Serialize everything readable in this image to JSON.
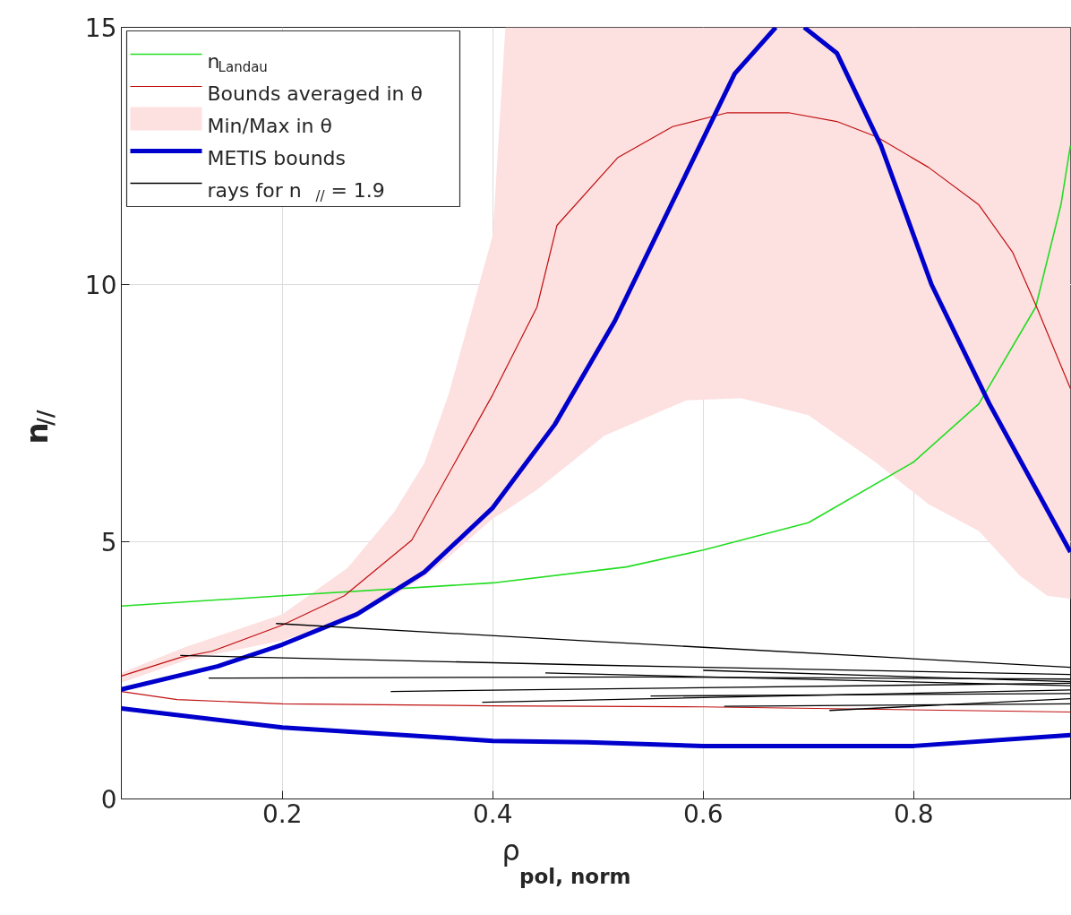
{
  "chart_data": {
    "type": "line",
    "xlabel": "ρ$_{pol, norm}$",
    "ylabel": "n$_{//}$",
    "xlim": [
      0.047,
      0.95
    ],
    "ylim": [
      0,
      15
    ],
    "xticks": [
      0.2,
      0.4,
      0.6,
      0.8
    ],
    "yticks": [
      0,
      5,
      10,
      15
    ],
    "grid": true,
    "legend": "top left",
    "series": [
      {
        "name": "n$_{Landau}$",
        "color": "#22dd22",
        "x": [
          0.047,
          0.2,
          0.4,
          0.527,
          0.6,
          0.7,
          0.8,
          0.862,
          0.916,
          0.94,
          0.949
        ],
        "values": [
          3.75,
          3.95,
          4.2,
          4.51,
          4.84,
          5.37,
          6.55,
          7.68,
          9.56,
          11.55,
          12.7
        ]
      },
      {
        "name": "Bounds averaged in θ",
        "color": "#c01010",
        "x": [
          0.047,
          0.103,
          0.133,
          0.2,
          0.259,
          0.323,
          0.4,
          0.442,
          0.461,
          0.519,
          0.571,
          0.623,
          0.681,
          0.727,
          0.765,
          0.814,
          0.862,
          0.894,
          0.917,
          0.949
        ],
        "values": [
          2.39,
          2.75,
          2.87,
          3.38,
          3.95,
          5.03,
          7.86,
          9.56,
          11.15,
          12.47,
          13.07,
          13.34,
          13.34,
          13.17,
          12.87,
          12.28,
          11.55,
          10.63,
          9.56,
          7.98
        ]
      },
      {
        "color": "#c01010",
        "x": [
          0.047,
          0.1,
          0.2,
          0.4,
          0.6,
          0.949
        ],
        "values": [
          2.09,
          1.93,
          1.85,
          1.81,
          1.79,
          1.69
        ]
      },
      {
        "name": "Min/Max in θ",
        "type": "area",
        "color": "#fde0e0",
        "x": [
          0.047,
          0.109,
          0.2,
          0.262,
          0.306,
          0.335,
          0.358,
          0.4,
          0.412,
          0.442,
          0.506,
          0.584,
          0.636,
          0.7,
          0.765,
          0.814,
          0.862,
          0.901,
          0.927,
          0.949
        ],
        "values": [
          null,
          null,
          null,
          null,
          null,
          null,
          null,
          null,
          null,
          null,
          null,
          null,
          null,
          null,
          null,
          null,
          null,
          null,
          null,
          null
        ],
        "lower": [
          2.26,
          2.7,
          3.08,
          3.5,
          3.95,
          4.32,
          4.7,
          5.45,
          5.6,
          6.01,
          7.06,
          7.75,
          7.79,
          7.46,
          6.53,
          5.73,
          5.21,
          4.34,
          3.95,
          3.89
        ],
        "upper": [
          2.45,
          2.96,
          3.59,
          4.49,
          5.57,
          6.53,
          7.86,
          10.96,
          15,
          15,
          15,
          15,
          15,
          15,
          15,
          15,
          15,
          15,
          15,
          15
        ]
      },
      {
        "name": "METIS bounds",
        "color": "#0000cc",
        "x": [
          0.047,
          0.139,
          0.2,
          0.271,
          0.335,
          0.4,
          0.459,
          0.516,
          0.63,
          0.669,
          0.682,
          0.696,
          0.727,
          0.769,
          0.817,
          0.872,
          0.949
        ],
        "values": [
          2.13,
          2.58,
          3.0,
          3.59,
          4.41,
          5.66,
          7.28,
          9.29,
          14.1,
          15.0,
          null,
          15.0,
          14.5,
          12.7,
          10.0,
          7.68,
          4.8
        ]
      },
      {
        "color": "#0000cc",
        "x": [
          0.047,
          0.2,
          0.4,
          0.49,
          0.6,
          0.8,
          0.949
        ],
        "values": [
          1.76,
          1.39,
          1.13,
          1.1,
          1.03,
          1.03,
          1.24
        ]
      },
      {
        "name": "rays for n$_{//}$ = 1.9",
        "color": "#000000",
        "x": [
          0.194,
          0.5,
          0.949
        ],
        "values": [
          3.41,
          3.06,
          2.56
        ]
      },
      {
        "color": "#000000",
        "x": [
          0.103,
          0.5,
          0.949
        ],
        "values": [
          2.79,
          2.6,
          2.42
        ]
      },
      {
        "color": "#000000",
        "x": [
          0.13,
          0.55,
          0.949
        ],
        "values": [
          2.35,
          2.37,
          2.33
        ]
      },
      {
        "color": "#000000",
        "x": [
          0.303,
          0.949
        ],
        "values": [
          2.09,
          2.25
        ]
      },
      {
        "color": "#000000",
        "x": [
          0.39,
          0.949
        ],
        "values": [
          1.88,
          2.12
        ]
      },
      {
        "color": "#000000",
        "x": [
          0.45,
          0.949
        ],
        "values": [
          2.45,
          2.2
        ]
      },
      {
        "color": "#000000",
        "x": [
          0.55,
          0.949
        ],
        "values": [
          2.0,
          2.05
        ]
      },
      {
        "color": "#000000",
        "x": [
          0.72,
          0.949
        ],
        "values": [
          1.72,
          1.95
        ]
      },
      {
        "color": "#000000",
        "x": [
          0.62,
          0.949
        ],
        "values": [
          1.8,
          1.85
        ]
      },
      {
        "color": "#000000",
        "x": [
          0.6,
          0.949
        ],
        "values": [
          2.5,
          2.28
        ]
      }
    ]
  }
}
